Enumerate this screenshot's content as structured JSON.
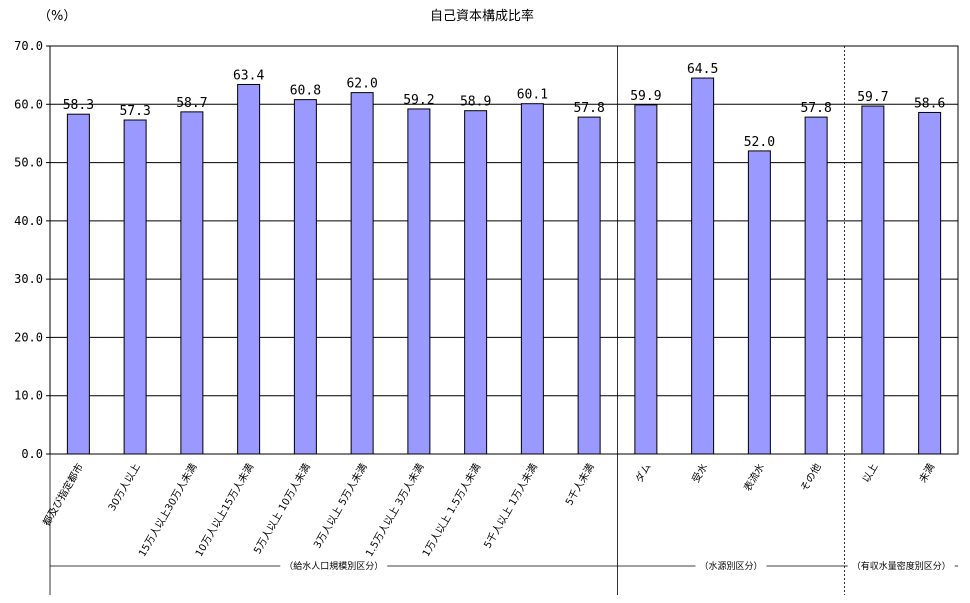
{
  "chart_data": {
    "type": "bar",
    "title": "自己資本構成比率",
    "ylabel": "（%）",
    "ylim": [
      0,
      70
    ],
    "yticks": [
      "0.0",
      "10.0",
      "20.0",
      "30.0",
      "40.0",
      "50.0",
      "60.0",
      "70.0"
    ],
    "grid": true,
    "bar_color": "#9999ff",
    "categories": [
      "都及び指定都市",
      "30万人以上",
      "15万人以上30万人未満",
      "10万人以上15万人未満",
      "5万人以上 10万人未満",
      "3万人以上 5万人未満",
      "1.5万人以上 3万人未満",
      "1万人以上 1.5万人未満",
      "5千人以上 1万人未満",
      "5千人未満",
      "ダム",
      "受水",
      "表流水",
      "その他",
      "以上",
      "未満"
    ],
    "values": [
      58.3,
      57.3,
      58.7,
      63.4,
      60.8,
      62.0,
      59.2,
      58.9,
      60.1,
      57.8,
      59.9,
      64.5,
      52.0,
      57.8,
      59.7,
      58.6
    ],
    "value_labels": [
      "58.3",
      "57.3",
      "58.7",
      "63.4",
      "60.8",
      "62.0",
      "59.2",
      "58.9",
      "60.1",
      "57.8",
      "59.9",
      "64.5",
      "52.0",
      "57.8",
      "59.7",
      "58.6"
    ],
    "groups": [
      {
        "label": "（給水人口規模別区分）",
        "start": 0,
        "end": 9
      },
      {
        "label": "（水源別区分）",
        "start": 10,
        "end": 13
      },
      {
        "label": "（有収水量密度別区分）",
        "start": 14,
        "end": 15
      }
    ]
  }
}
